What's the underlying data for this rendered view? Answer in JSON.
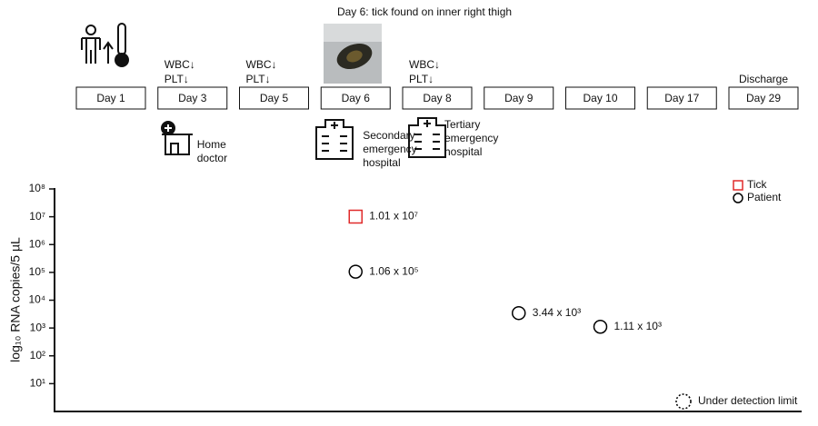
{
  "timeline": {
    "title": "Day 6: tick found on inner right thigh",
    "days": [
      {
        "label": "Day 1"
      },
      {
        "label": "Day 3",
        "above": [
          "WBC↓",
          "PLT↓"
        ],
        "below": [
          "Home",
          "doctor"
        ]
      },
      {
        "label": "Day 5",
        "above": [
          "WBC↓",
          "PLT↓"
        ]
      },
      {
        "label": "Day 6",
        "below": [
          "Secondary",
          "emergency",
          "hospital"
        ]
      },
      {
        "label": "Day 8",
        "above": [
          "WBC↓",
          "PLT↓"
        ],
        "below": [
          "Tertiary",
          "emergency",
          "hospital"
        ]
      },
      {
        "label": "Day 9"
      },
      {
        "label": "Day 10"
      },
      {
        "label": "Day 17"
      },
      {
        "label": "Day 29",
        "above": [
          "Discharge"
        ]
      }
    ]
  },
  "chart_data": {
    "type": "scatter",
    "log_scale": true,
    "ylabel": "log₁₀ RNA copies/5 µL",
    "ylim": [
      1,
      100000000
    ],
    "yticks": [
      {
        "value": 10,
        "label": "10¹"
      },
      {
        "value": 100,
        "label": "10²"
      },
      {
        "value": 1000,
        "label": "10³"
      },
      {
        "value": 10000,
        "label": "10⁴"
      },
      {
        "value": 100000,
        "label": "10⁵"
      },
      {
        "value": 1000000,
        "label": "10⁶"
      },
      {
        "value": 10000000,
        "label": "10⁷"
      },
      {
        "value": 100000000,
        "label": "10⁸"
      }
    ],
    "series": [
      {
        "name": "Tick",
        "color": "#e02a2a",
        "marker": "square",
        "x": [
          "Day 6"
        ],
        "values": [
          10100000
        ],
        "value_labels": [
          "1.01 x 10⁷"
        ]
      },
      {
        "name": "Patient",
        "color": "#000000",
        "marker": "circle",
        "x": [
          "Day 6",
          "Day 9",
          "Day 10"
        ],
        "values": [
          106000,
          3440,
          1110
        ],
        "value_labels": [
          "1.06 x 10⁵",
          "3.44 x 10³",
          "1.11 x 10³"
        ]
      },
      {
        "name": "Under detection limit",
        "color": "#000000",
        "marker": "dashed-circle",
        "x": [],
        "values": []
      }
    ]
  }
}
